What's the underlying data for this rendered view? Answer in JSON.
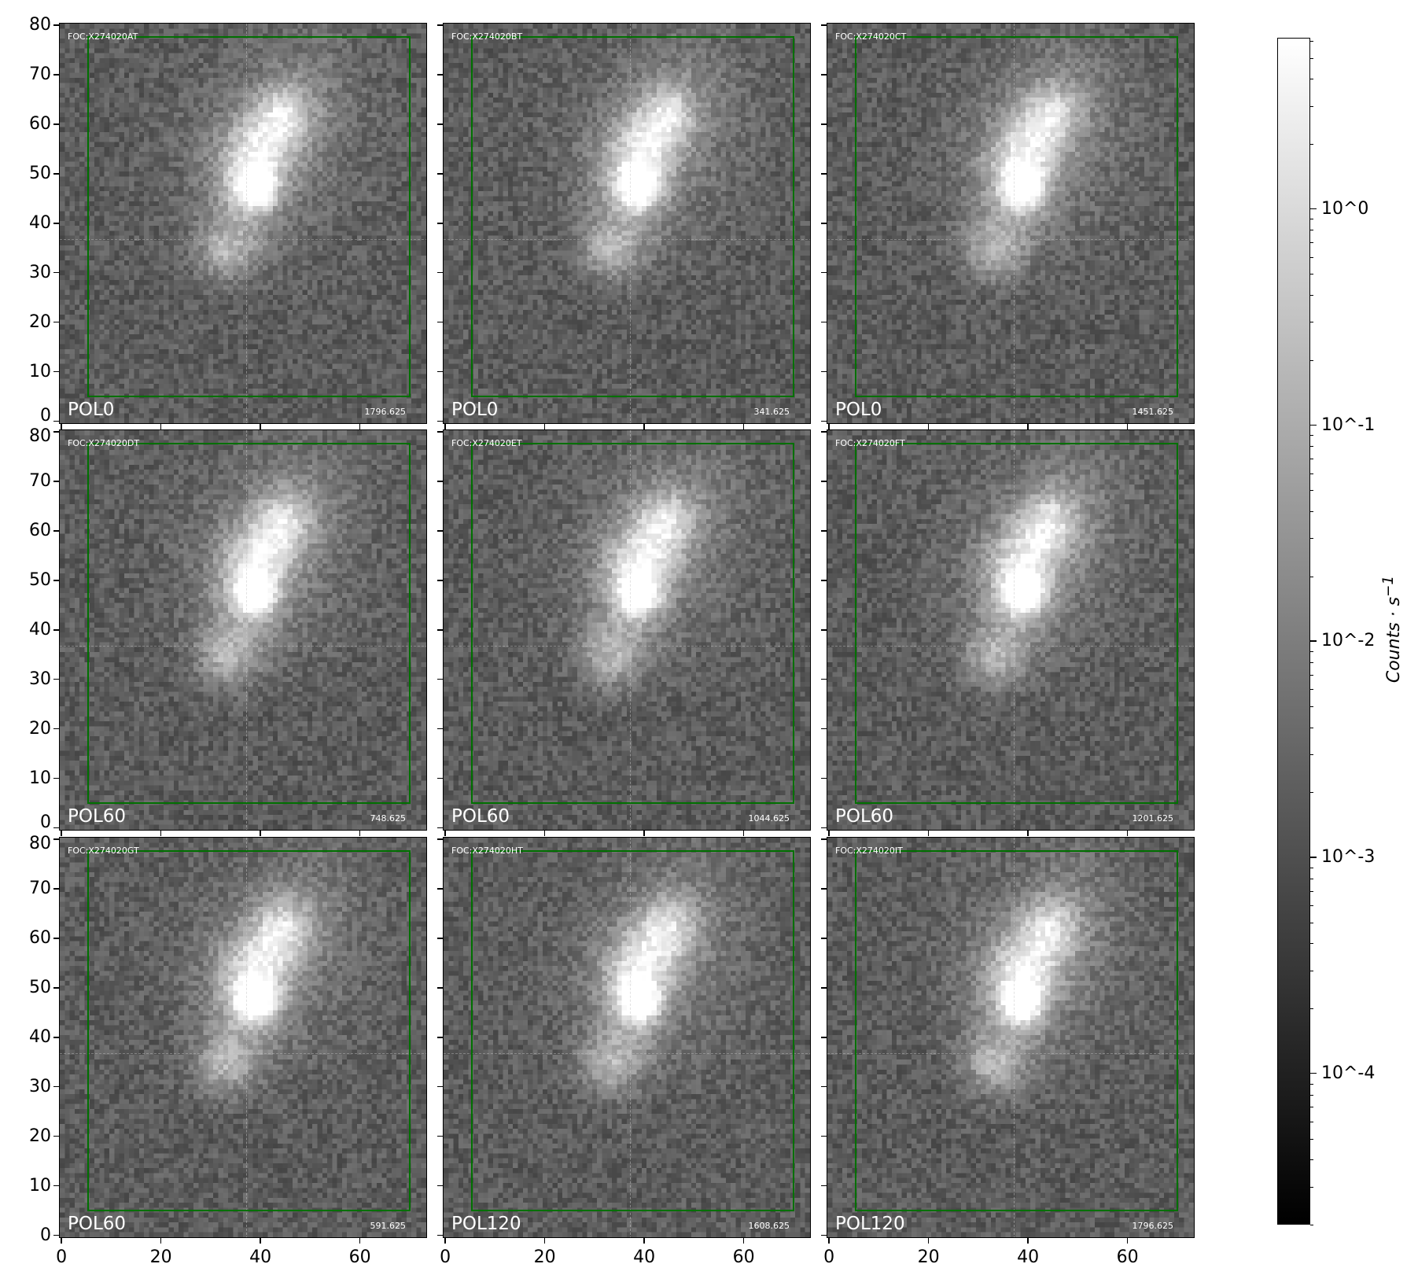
{
  "chart_data": {
    "type": "heatmap",
    "layout": "3x3 grid",
    "xlim": [
      -0.5,
      73.5
    ],
    "ylim": [
      -0.5,
      80.5
    ],
    "x_ticks": [
      "0",
      "20",
      "40",
      "60"
    ],
    "y_ticks": [
      "0",
      "10",
      "20",
      "30",
      "40",
      "50",
      "60",
      "70",
      "80"
    ],
    "box": {
      "x": [
        5,
        70
      ],
      "y": [
        5,
        78
      ],
      "color": "#007000"
    },
    "panels": [
      {
        "title": "FOC:X274020AT",
        "filter": "POL0",
        "value": "1796.625"
      },
      {
        "title": "FOC:X274020BT",
        "filter": "POL0",
        "value": "341.625"
      },
      {
        "title": "FOC:X274020CT",
        "filter": "POL0",
        "value": "1451.625"
      },
      {
        "title": "FOC:X274020DT",
        "filter": "POL60",
        "value": "748.625"
      },
      {
        "title": "FOC:X274020ET",
        "filter": "POL60",
        "value": "1044.625"
      },
      {
        "title": "FOC:X274020FT",
        "filter": "POL60",
        "value": "1201.625"
      },
      {
        "title": "FOC:X274020GT",
        "filter": "POL60",
        "value": "591.625"
      },
      {
        "title": "FOC:X274020HT",
        "filter": "POL120",
        "value": "1608.625"
      },
      {
        "title": "FOC:X274020IT",
        "filter": "POL120",
        "value": "1796.625"
      }
    ],
    "colorbar": {
      "scale": "log",
      "colormap": "gray",
      "range": [
        2e-05,
        6.2
      ],
      "ticks": [
        {
          "value": 1,
          "label": "10^0"
        },
        {
          "value": 0.1,
          "label": "10^-1"
        },
        {
          "value": 0.01,
          "label": "10^-2"
        },
        {
          "value": 0.001,
          "label": "10^-3"
        },
        {
          "value": 0.0001,
          "label": "10^-4"
        }
      ],
      "label_main": "Counts · s",
      "label_exp": "−1"
    }
  }
}
